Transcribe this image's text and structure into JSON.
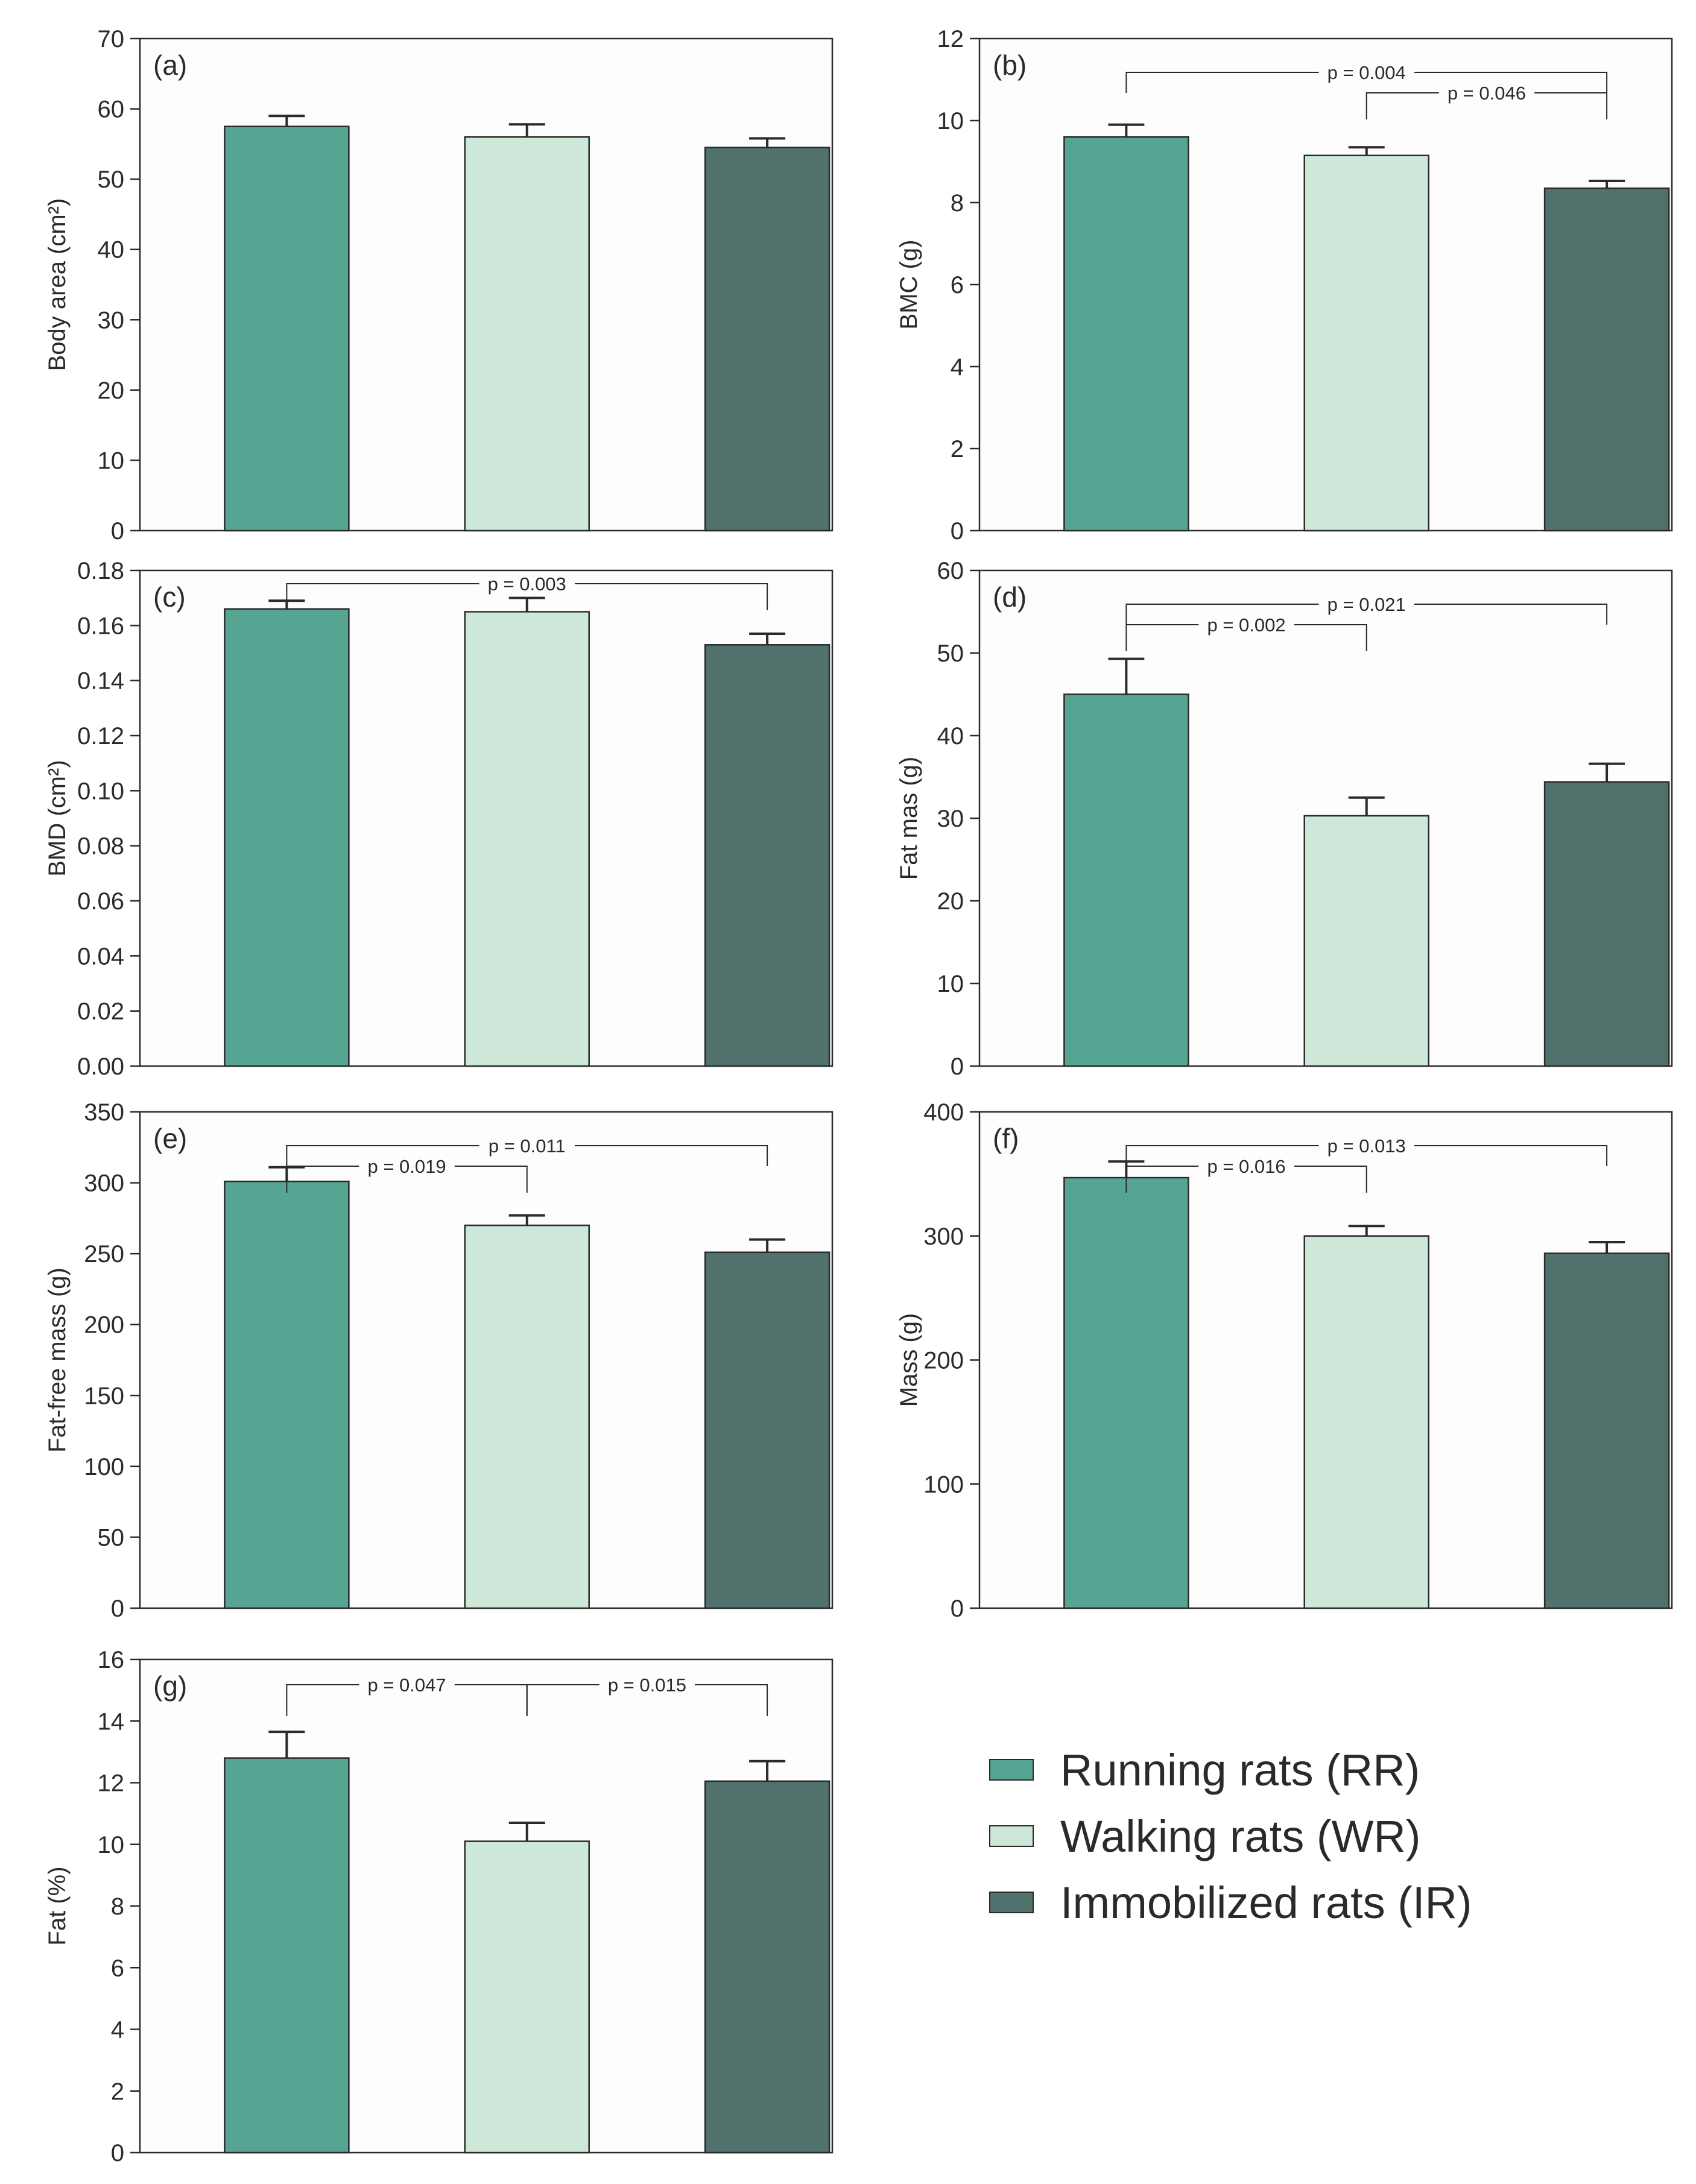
{
  "colors": {
    "rr": "#56a593",
    "wr": "#cde8d9",
    "ir": "#50716c",
    "axis": "#2a2a2a",
    "panel_bg": "#fdfdfd"
  },
  "legend": [
    {
      "label": "Running rats (RR)",
      "color": "#56a593"
    },
    {
      "label": "Walking rats (WR)",
      "color": "#cde8d9"
    },
    {
      "label": "Immobilized rats (IR)",
      "color": "#50716c"
    }
  ],
  "chart_data": [
    {
      "type": "bar",
      "panel": "(a)",
      "ylabel": "Body area (cm²)",
      "ylim": [
        0,
        70
      ],
      "yticks": [
        "0",
        "10",
        "20",
        "30",
        "40",
        "50",
        "60",
        "70"
      ],
      "categories": [
        "Running rats (RR)",
        "Walking rats (WR)",
        "Immobilized rats (IR)"
      ],
      "values": [
        57.5,
        56.0,
        54.5
      ],
      "errors": [
        1.5,
        1.8,
        1.3
      ],
      "comparisons": []
    },
    {
      "type": "bar",
      "panel": "(b)",
      "ylabel": "BMC (g)",
      "ylim": [
        0,
        12
      ],
      "yticks": [
        "0",
        "2",
        "4",
        "6",
        "8",
        "10",
        "12"
      ],
      "categories": [
        "Running rats (RR)",
        "Walking rats (WR)",
        "Immobilized rats (IR)"
      ],
      "values": [
        9.6,
        9.15,
        8.35
      ],
      "errors": [
        0.3,
        0.2,
        0.18
      ],
      "comparisons": [
        {
          "from": 0,
          "to": 2,
          "label": "p = 0.004"
        },
        {
          "from": 1,
          "to": 2,
          "label": "p = 0.046"
        }
      ]
    },
    {
      "type": "bar",
      "panel": "(c)",
      "ylabel": "BMD (cm²)",
      "ylim": [
        0,
        0.18
      ],
      "yticks": [
        "0.00",
        "0.02",
        "0.04",
        "0.06",
        "0.08",
        "0.10",
        "0.12",
        "0.14",
        "0.16",
        "0.18"
      ],
      "categories": [
        "Running rats (RR)",
        "Walking rats (WR)",
        "Immobilized rats (IR)"
      ],
      "values": [
        0.166,
        0.165,
        0.153
      ],
      "errors": [
        0.003,
        0.005,
        0.004
      ],
      "comparisons": [
        {
          "from": 0,
          "to": 2,
          "label": "p = 0.003"
        }
      ]
    },
    {
      "type": "bar",
      "panel": "(d)",
      "ylabel": "Fat mas (g)",
      "ylim": [
        0,
        60
      ],
      "yticks": [
        "0",
        "10",
        "20",
        "30",
        "40",
        "50",
        "60"
      ],
      "categories": [
        "Running rats (RR)",
        "Walking rats (WR)",
        "Immobilized rats (IR)"
      ],
      "values": [
        45.0,
        30.3,
        34.4
      ],
      "errors": [
        4.3,
        2.2,
        2.2
      ],
      "comparisons": [
        {
          "from": 0,
          "to": 1,
          "label": "p = 0.002"
        },
        {
          "from": 0,
          "to": 2,
          "label": "p = 0.021"
        }
      ]
    },
    {
      "type": "bar",
      "panel": "(e)",
      "ylabel": "Fat-free mass (g)",
      "ylim": [
        0,
        350
      ],
      "yticks": [
        "0",
        "50",
        "100",
        "150",
        "200",
        "250",
        "300",
        "350"
      ],
      "categories": [
        "Running rats (RR)",
        "Walking rats (WR)",
        "Immobilized rats (IR)"
      ],
      "values": [
        301,
        270,
        251
      ],
      "errors": [
        10,
        7,
        9
      ],
      "comparisons": [
        {
          "from": 0,
          "to": 1,
          "label": "p = 0.019"
        },
        {
          "from": 0,
          "to": 2,
          "label": "p = 0.011"
        }
      ]
    },
    {
      "type": "bar",
      "panel": "(f)",
      "ylabel": "Mass (g)",
      "ylim": [
        0,
        400
      ],
      "yticks": [
        "0",
        "100",
        "200",
        "300",
        "400"
      ],
      "categories": [
        "Running rats (RR)",
        "Walking rats (WR)",
        "Immobilized rats (IR)"
      ],
      "values": [
        347,
        300,
        286
      ],
      "errors": [
        13,
        8,
        9
      ],
      "comparisons": [
        {
          "from": 0,
          "to": 1,
          "label": "p = 0.016"
        },
        {
          "from": 0,
          "to": 2,
          "label": "p = 0.013"
        }
      ]
    },
    {
      "type": "bar",
      "panel": "(g)",
      "ylabel": "Fat (%)",
      "ylim": [
        0,
        16
      ],
      "yticks": [
        "0",
        "2",
        "4",
        "6",
        "8",
        "10",
        "12",
        "14",
        "16"
      ],
      "categories": [
        "Running rats (RR)",
        "Walking rats (WR)",
        "Immobilized rats (IR)"
      ],
      "values": [
        12.8,
        10.1,
        12.05
      ],
      "errors": [
        0.85,
        0.6,
        0.65
      ],
      "comparisons": [
        {
          "from": 0,
          "to": 1,
          "label": "p = 0.047"
        },
        {
          "from": 1,
          "to": 2,
          "label": "p = 0.015"
        }
      ]
    }
  ]
}
